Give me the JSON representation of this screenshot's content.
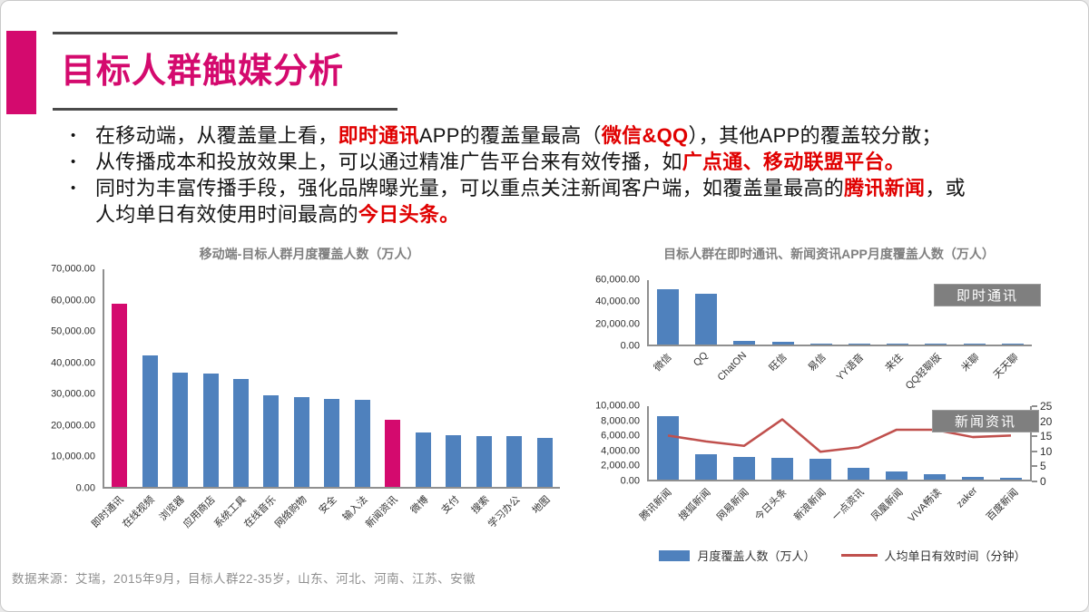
{
  "header": {
    "title": "目标人群触媒分析",
    "accent_color": "#D40A6E",
    "rule_color": "#4A4A4A"
  },
  "bullets": [
    {
      "segments": [
        {
          "t": "在移动端，从覆盖量上看，",
          "red": false
        },
        {
          "t": "即时通讯",
          "red": true
        },
        {
          "t": "APP的覆盖量最高（",
          "red": false
        },
        {
          "t": "微信&QQ",
          "red": true
        },
        {
          "t": "），其他APP的覆盖较分散；",
          "red": false
        }
      ]
    },
    {
      "segments": [
        {
          "t": "从传播成本和投放效果上，可以通过精准广告平台来有效传播，如",
          "red": false
        },
        {
          "t": "广点通、移动联盟平台",
          "red": true
        },
        {
          "t": "。",
          "red": true
        }
      ]
    },
    {
      "segments": [
        {
          "t": "同时为丰富传播手段，强化品牌曝光量，可以重点关注新闻客户端，如覆盖量最高的",
          "red": false
        },
        {
          "t": "腾讯新闻",
          "red": true
        },
        {
          "t": "，或",
          "red": false
        },
        {
          "br": true
        },
        {
          "t": "人均单日有效使用时间最高的",
          "red": false
        },
        {
          "t": "今日头条",
          "red": true
        },
        {
          "t": "。",
          "red": true
        }
      ]
    }
  ],
  "colors": {
    "magenta": "#D40A6E",
    "bar_blue": "#4F81BD",
    "line_red": "#C0504D",
    "text_red": "#E00000",
    "chart_title_gray": "#7F7F7F",
    "tag_gray": "#7F7F7F"
  },
  "chart_data": [
    {
      "id": "mobile_coverage",
      "type": "bar",
      "title": "移动端-目标人群月度覆盖人数（万人）",
      "categories": [
        "即时通讯",
        "在线视频",
        "浏览器",
        "应用商店",
        "系统工具",
        "在线音乐",
        "网络购物",
        "安全",
        "输入法",
        "新闻资讯",
        "微博",
        "支付",
        "搜索",
        "学习办公",
        "地图"
      ],
      "values": [
        59000,
        42400,
        36900,
        36500,
        34700,
        29600,
        28800,
        28400,
        28000,
        21500,
        17600,
        16600,
        16300,
        16300,
        15900
      ],
      "highlight_indices": [
        0,
        9
      ],
      "bar_color": "#4F81BD",
      "highlight_color": "#D40A6E",
      "ylim": [
        0,
        70000
      ],
      "yticks": [
        "70,000.00",
        "60,000.00",
        "50,000.00",
        "40,000.00",
        "30,000.00",
        "20,000.00",
        "10,000.00",
        "0.00"
      ],
      "grid": false
    },
    {
      "id": "im_apps",
      "type": "bar",
      "title": "目标人群在即时通讯、新闻资讯APP月度覆盖人数（万人）",
      "tag": "即时通讯",
      "categories": [
        "微信",
        "QQ",
        "ChatON",
        "旺信",
        "易信",
        "YY语音",
        "来往",
        "QQ轻聊版",
        "米聊",
        "天天聊"
      ],
      "values": [
        51500,
        47000,
        3500,
        2200,
        1250,
        1100,
        1000,
        850,
        850,
        1100
      ],
      "bar_color": "#4F81BD",
      "ylim": [
        0,
        60000
      ],
      "yticks": [
        "60,000.00",
        "40,000.00",
        "20,000.00",
        "0.00"
      ],
      "grid": false
    },
    {
      "id": "news_apps",
      "type": "bar+line",
      "title": "",
      "tag": "新闻资讯",
      "categories": [
        "腾讯新闻",
        "搜狐新闻",
        "网易新闻",
        "今日头条",
        "新浪新闻",
        "一点资讯",
        "凤凰新闻",
        "VIVA畅读",
        "zaker",
        "百度新闻"
      ],
      "series": [
        {
          "name": "月度覆盖人数（万人）",
          "type": "bar",
          "axis": "left",
          "color": "#4F81BD",
          "values": [
            8700,
            3500,
            3150,
            3000,
            2850,
            1600,
            1100,
            800,
            400,
            250
          ]
        },
        {
          "name": "人均单日有效时间（分钟）",
          "type": "line",
          "axis": "right",
          "color": "#C0504D",
          "values": [
            15,
            13,
            11.5,
            20.5,
            9.5,
            11,
            17,
            17,
            14.5,
            15
          ]
        }
      ],
      "ylim_left": [
        0,
        10000
      ],
      "ylim_right": [
        0,
        25
      ],
      "yticks_left": [
        "10,000.00",
        "8,000.00",
        "6,000.00",
        "4,000.00",
        "2,000.00",
        "0.00"
      ],
      "yticks_right": [
        "25",
        "20",
        "15",
        "10",
        "5",
        "0"
      ],
      "grid": false
    }
  ],
  "legend": [
    {
      "swatch": "bar",
      "color": "#4F81BD",
      "label": "月度覆盖人数（万人）"
    },
    {
      "swatch": "line",
      "color": "#C0504D",
      "label": "人均单日有效时间（分钟）"
    }
  ],
  "footer": {
    "text": "数据来源：艾瑞，2015年9月，目标人群22-35岁，山东、河北、河南、江苏、安徽"
  }
}
